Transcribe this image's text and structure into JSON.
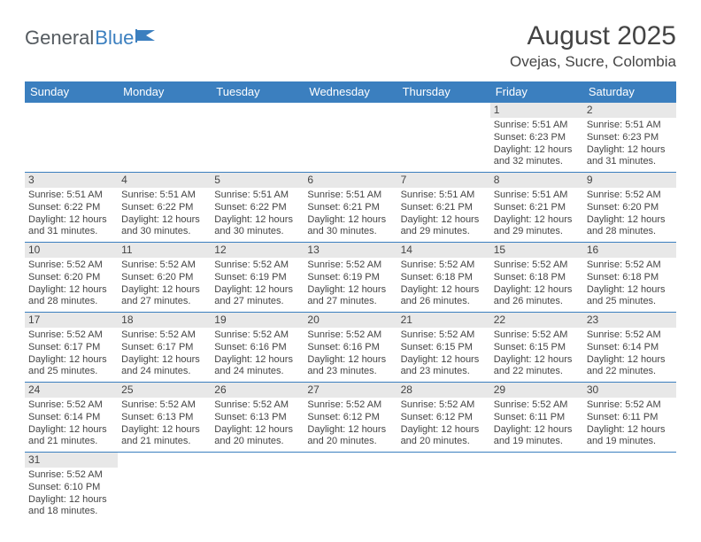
{
  "logo": {
    "part1": "General",
    "part2": "Blue"
  },
  "title": "August 2025",
  "subtitle": "Ovejas, Sucre, Colombia",
  "colors": {
    "header_bg": "#3b7fbf",
    "header_text": "#ffffff",
    "daynum_bg": "#e8e8e8",
    "row_border": "#3b7fbf",
    "body_text": "#444444",
    "logo_gray": "#555b60",
    "logo_blue": "#3b7fbf"
  },
  "day_headers": [
    "Sunday",
    "Monday",
    "Tuesday",
    "Wednesday",
    "Thursday",
    "Friday",
    "Saturday"
  ],
  "weeks": [
    [
      {
        "n": "",
        "sr": "",
        "ss": "",
        "dl": ""
      },
      {
        "n": "",
        "sr": "",
        "ss": "",
        "dl": ""
      },
      {
        "n": "",
        "sr": "",
        "ss": "",
        "dl": ""
      },
      {
        "n": "",
        "sr": "",
        "ss": "",
        "dl": ""
      },
      {
        "n": "",
        "sr": "",
        "ss": "",
        "dl": ""
      },
      {
        "n": "1",
        "sr": "Sunrise: 5:51 AM",
        "ss": "Sunset: 6:23 PM",
        "dl": "Daylight: 12 hours and 32 minutes."
      },
      {
        "n": "2",
        "sr": "Sunrise: 5:51 AM",
        "ss": "Sunset: 6:23 PM",
        "dl": "Daylight: 12 hours and 31 minutes."
      }
    ],
    [
      {
        "n": "3",
        "sr": "Sunrise: 5:51 AM",
        "ss": "Sunset: 6:22 PM",
        "dl": "Daylight: 12 hours and 31 minutes."
      },
      {
        "n": "4",
        "sr": "Sunrise: 5:51 AM",
        "ss": "Sunset: 6:22 PM",
        "dl": "Daylight: 12 hours and 30 minutes."
      },
      {
        "n": "5",
        "sr": "Sunrise: 5:51 AM",
        "ss": "Sunset: 6:22 PM",
        "dl": "Daylight: 12 hours and 30 minutes."
      },
      {
        "n": "6",
        "sr": "Sunrise: 5:51 AM",
        "ss": "Sunset: 6:21 PM",
        "dl": "Daylight: 12 hours and 30 minutes."
      },
      {
        "n": "7",
        "sr": "Sunrise: 5:51 AM",
        "ss": "Sunset: 6:21 PM",
        "dl": "Daylight: 12 hours and 29 minutes."
      },
      {
        "n": "8",
        "sr": "Sunrise: 5:51 AM",
        "ss": "Sunset: 6:21 PM",
        "dl": "Daylight: 12 hours and 29 minutes."
      },
      {
        "n": "9",
        "sr": "Sunrise: 5:52 AM",
        "ss": "Sunset: 6:20 PM",
        "dl": "Daylight: 12 hours and 28 minutes."
      }
    ],
    [
      {
        "n": "10",
        "sr": "Sunrise: 5:52 AM",
        "ss": "Sunset: 6:20 PM",
        "dl": "Daylight: 12 hours and 28 minutes."
      },
      {
        "n": "11",
        "sr": "Sunrise: 5:52 AM",
        "ss": "Sunset: 6:20 PM",
        "dl": "Daylight: 12 hours and 27 minutes."
      },
      {
        "n": "12",
        "sr": "Sunrise: 5:52 AM",
        "ss": "Sunset: 6:19 PM",
        "dl": "Daylight: 12 hours and 27 minutes."
      },
      {
        "n": "13",
        "sr": "Sunrise: 5:52 AM",
        "ss": "Sunset: 6:19 PM",
        "dl": "Daylight: 12 hours and 27 minutes."
      },
      {
        "n": "14",
        "sr": "Sunrise: 5:52 AM",
        "ss": "Sunset: 6:18 PM",
        "dl": "Daylight: 12 hours and 26 minutes."
      },
      {
        "n": "15",
        "sr": "Sunrise: 5:52 AM",
        "ss": "Sunset: 6:18 PM",
        "dl": "Daylight: 12 hours and 26 minutes."
      },
      {
        "n": "16",
        "sr": "Sunrise: 5:52 AM",
        "ss": "Sunset: 6:18 PM",
        "dl": "Daylight: 12 hours and 25 minutes."
      }
    ],
    [
      {
        "n": "17",
        "sr": "Sunrise: 5:52 AM",
        "ss": "Sunset: 6:17 PM",
        "dl": "Daylight: 12 hours and 25 minutes."
      },
      {
        "n": "18",
        "sr": "Sunrise: 5:52 AM",
        "ss": "Sunset: 6:17 PM",
        "dl": "Daylight: 12 hours and 24 minutes."
      },
      {
        "n": "19",
        "sr": "Sunrise: 5:52 AM",
        "ss": "Sunset: 6:16 PM",
        "dl": "Daylight: 12 hours and 24 minutes."
      },
      {
        "n": "20",
        "sr": "Sunrise: 5:52 AM",
        "ss": "Sunset: 6:16 PM",
        "dl": "Daylight: 12 hours and 23 minutes."
      },
      {
        "n": "21",
        "sr": "Sunrise: 5:52 AM",
        "ss": "Sunset: 6:15 PM",
        "dl": "Daylight: 12 hours and 23 minutes."
      },
      {
        "n": "22",
        "sr": "Sunrise: 5:52 AM",
        "ss": "Sunset: 6:15 PM",
        "dl": "Daylight: 12 hours and 22 minutes."
      },
      {
        "n": "23",
        "sr": "Sunrise: 5:52 AM",
        "ss": "Sunset: 6:14 PM",
        "dl": "Daylight: 12 hours and 22 minutes."
      }
    ],
    [
      {
        "n": "24",
        "sr": "Sunrise: 5:52 AM",
        "ss": "Sunset: 6:14 PM",
        "dl": "Daylight: 12 hours and 21 minutes."
      },
      {
        "n": "25",
        "sr": "Sunrise: 5:52 AM",
        "ss": "Sunset: 6:13 PM",
        "dl": "Daylight: 12 hours and 21 minutes."
      },
      {
        "n": "26",
        "sr": "Sunrise: 5:52 AM",
        "ss": "Sunset: 6:13 PM",
        "dl": "Daylight: 12 hours and 20 minutes."
      },
      {
        "n": "27",
        "sr": "Sunrise: 5:52 AM",
        "ss": "Sunset: 6:12 PM",
        "dl": "Daylight: 12 hours and 20 minutes."
      },
      {
        "n": "28",
        "sr": "Sunrise: 5:52 AM",
        "ss": "Sunset: 6:12 PM",
        "dl": "Daylight: 12 hours and 20 minutes."
      },
      {
        "n": "29",
        "sr": "Sunrise: 5:52 AM",
        "ss": "Sunset: 6:11 PM",
        "dl": "Daylight: 12 hours and 19 minutes."
      },
      {
        "n": "30",
        "sr": "Sunrise: 5:52 AM",
        "ss": "Sunset: 6:11 PM",
        "dl": "Daylight: 12 hours and 19 minutes."
      }
    ],
    [
      {
        "n": "31",
        "sr": "Sunrise: 5:52 AM",
        "ss": "Sunset: 6:10 PM",
        "dl": "Daylight: 12 hours and 18 minutes."
      },
      {
        "n": "",
        "sr": "",
        "ss": "",
        "dl": ""
      },
      {
        "n": "",
        "sr": "",
        "ss": "",
        "dl": ""
      },
      {
        "n": "",
        "sr": "",
        "ss": "",
        "dl": ""
      },
      {
        "n": "",
        "sr": "",
        "ss": "",
        "dl": ""
      },
      {
        "n": "",
        "sr": "",
        "ss": "",
        "dl": ""
      },
      {
        "n": "",
        "sr": "",
        "ss": "",
        "dl": ""
      }
    ]
  ]
}
